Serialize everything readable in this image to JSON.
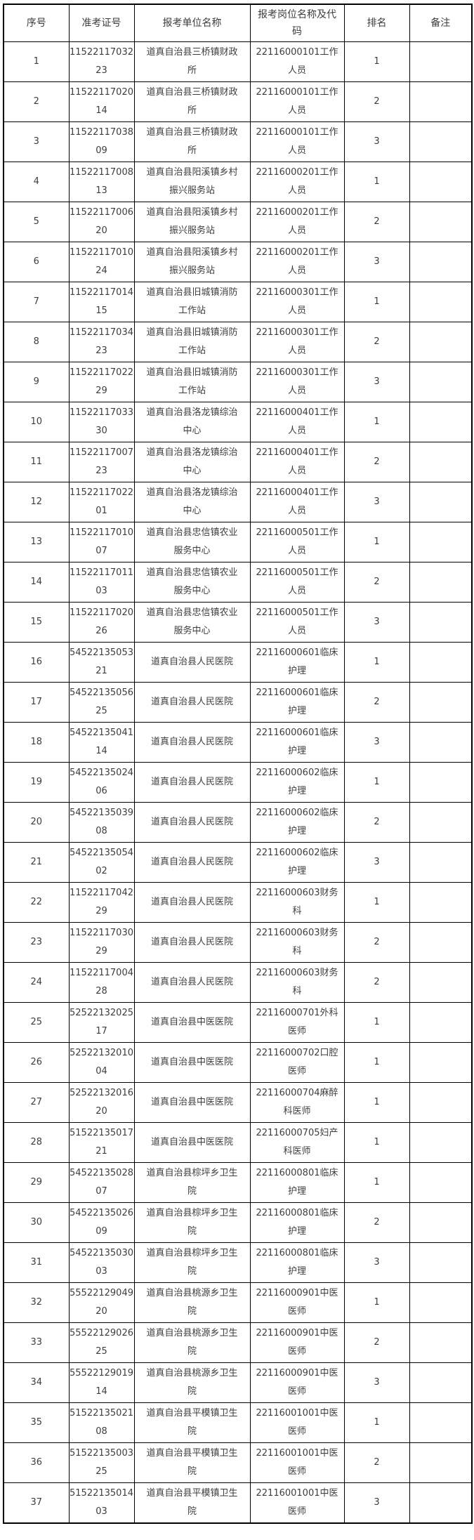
{
  "table": {
    "columns": [
      "序号",
      "准考证号",
      "报考单位名称",
      "报考岗位名称及代码",
      "排名",
      "备注"
    ],
    "rows": [
      {
        "no": "1",
        "ticket": "1152211703223",
        "unit": "道真自治县三桥镇财政所",
        "position": "22116000101工作人员",
        "rank": "1",
        "note": ""
      },
      {
        "no": "2",
        "ticket": "1152211702014",
        "unit": "道真自治县三桥镇财政所",
        "position": "22116000101工作人员",
        "rank": "2",
        "note": ""
      },
      {
        "no": "3",
        "ticket": "1152211703809",
        "unit": "道真自治县三桥镇财政所",
        "position": "22116000101工作人员",
        "rank": "3",
        "note": ""
      },
      {
        "no": "4",
        "ticket": "1152211700813",
        "unit": "道真自治县阳溪镇乡村振兴服务站",
        "position": "22116000201工作人员",
        "rank": "1",
        "note": ""
      },
      {
        "no": "5",
        "ticket": "1152211700620",
        "unit": "道真自治县阳溪镇乡村振兴服务站",
        "position": "22116000201工作人员",
        "rank": "2",
        "note": ""
      },
      {
        "no": "6",
        "ticket": "1152211701024",
        "unit": "道真自治县阳溪镇乡村振兴服务站",
        "position": "22116000201工作人员",
        "rank": "3",
        "note": ""
      },
      {
        "no": "7",
        "ticket": "1152211701415",
        "unit": "道真自治县旧城镇消防工作站",
        "position": "22116000301工作人员",
        "rank": "1",
        "note": ""
      },
      {
        "no": "8",
        "ticket": "1152211703423",
        "unit": "道真自治县旧城镇消防工作站",
        "position": "22116000301工作人员",
        "rank": "2",
        "note": ""
      },
      {
        "no": "9",
        "ticket": "1152211702229",
        "unit": "道真自治县旧城镇消防工作站",
        "position": "22116000301工作人员",
        "rank": "3",
        "note": ""
      },
      {
        "no": "10",
        "ticket": "1152211703330",
        "unit": "道真自治县洛龙镇综治中心",
        "position": "22116000401工作人员",
        "rank": "1",
        "note": ""
      },
      {
        "no": "11",
        "ticket": "1152211700723",
        "unit": "道真自治县洛龙镇综治中心",
        "position": "22116000401工作人员",
        "rank": "2",
        "note": ""
      },
      {
        "no": "12",
        "ticket": "1152211702201",
        "unit": "道真自治县洛龙镇综治中心",
        "position": "22116000401工作人员",
        "rank": "3",
        "note": ""
      },
      {
        "no": "13",
        "ticket": "1152211701007",
        "unit": "道真自治县忠信镇农业服务中心",
        "position": "22116000501工作人员",
        "rank": "1",
        "note": ""
      },
      {
        "no": "14",
        "ticket": "1152211701103",
        "unit": "道真自治县忠信镇农业服务中心",
        "position": "22116000501工作人员",
        "rank": "2",
        "note": ""
      },
      {
        "no": "15",
        "ticket": "1152211702026",
        "unit": "道真自治县忠信镇农业服务中心",
        "position": "22116000501工作人员",
        "rank": "3",
        "note": ""
      },
      {
        "no": "16",
        "ticket": "5452213505321",
        "unit": "道真自治县人民医院",
        "position": "22116000601临床护理",
        "rank": "1",
        "note": ""
      },
      {
        "no": "17",
        "ticket": "5452213505625",
        "unit": "道真自治县人民医院",
        "position": "22116000601临床护理",
        "rank": "2",
        "note": ""
      },
      {
        "no": "18",
        "ticket": "5452213504114",
        "unit": "道真自治县人民医院",
        "position": "22116000601临床护理",
        "rank": "3",
        "note": ""
      },
      {
        "no": "19",
        "ticket": "5452213502406",
        "unit": "道真自治县人民医院",
        "position": "22116000602临床护理",
        "rank": "1",
        "note": ""
      },
      {
        "no": "20",
        "ticket": "5452213503908",
        "unit": "道真自治县人民医院",
        "position": "22116000602临床护理",
        "rank": "2",
        "note": ""
      },
      {
        "no": "21",
        "ticket": "5452213505402",
        "unit": "道真自治县人民医院",
        "position": "22116000602临床护理",
        "rank": "3",
        "note": ""
      },
      {
        "no": "22",
        "ticket": "1152211704229",
        "unit": "道真自治县人民医院",
        "position": "22116000603财务科",
        "rank": "1",
        "note": ""
      },
      {
        "no": "23",
        "ticket": "1152211703029",
        "unit": "道真自治县人民医院",
        "position": "22116000603财务科",
        "rank": "2",
        "note": ""
      },
      {
        "no": "24",
        "ticket": "1152211700428",
        "unit": "道真自治县人民医院",
        "position": "22116000603财务科",
        "rank": "2",
        "note": ""
      },
      {
        "no": "25",
        "ticket": "5252213202517",
        "unit": "道真自治县中医医院",
        "position": "22116000701外科医师",
        "rank": "1",
        "note": ""
      },
      {
        "no": "26",
        "ticket": "5252213201004",
        "unit": "道真自治县中医医院",
        "position": "22116000702口腔医师",
        "rank": "1",
        "note": ""
      },
      {
        "no": "27",
        "ticket": "5252213201620",
        "unit": "道真自治县中医医院",
        "position": "22116000704麻醉科医师",
        "rank": "1",
        "note": ""
      },
      {
        "no": "28",
        "ticket": "5152213501721",
        "unit": "道真自治县中医医院",
        "position": "22116000705妇产科医师",
        "rank": "1",
        "note": ""
      },
      {
        "no": "29",
        "ticket": "5452213502807",
        "unit": "道真自治县棕坪乡卫生院",
        "position": "22116000801临床护理",
        "rank": "1",
        "note": ""
      },
      {
        "no": "30",
        "ticket": "5452213502609",
        "unit": "道真自治县棕坪乡卫生院",
        "position": "22116000801临床护理",
        "rank": "2",
        "note": ""
      },
      {
        "no": "31",
        "ticket": "5452213503003",
        "unit": "道真自治县棕坪乡卫生院",
        "position": "22116000801临床护理",
        "rank": "3",
        "note": ""
      },
      {
        "no": "32",
        "ticket": "5552212904920",
        "unit": "道真自治县桃源乡卫生院",
        "position": "22116000901中医医师",
        "rank": "1",
        "note": ""
      },
      {
        "no": "33",
        "ticket": "5552212902625",
        "unit": "道真自治县桃源乡卫生院",
        "position": "22116000901中医医师",
        "rank": "2",
        "note": ""
      },
      {
        "no": "34",
        "ticket": "5552212901914",
        "unit": "道真自治县桃源乡卫生院",
        "position": "22116000901中医医师",
        "rank": "3",
        "note": ""
      },
      {
        "no": "35",
        "ticket": "5152213502108",
        "unit": "道真自治县平模镇卫生院",
        "position": "22116001001中医医师",
        "rank": "1",
        "note": ""
      },
      {
        "no": "36",
        "ticket": "5152213500325",
        "unit": "道真自治县平模镇卫生院",
        "position": "22116001001中医医师",
        "rank": "2",
        "note": ""
      },
      {
        "no": "37",
        "ticket": "5152213501403",
        "unit": "道真自治县平模镇卫生院",
        "position": "22116001001中医医师",
        "rank": "3",
        "note": ""
      }
    ]
  }
}
